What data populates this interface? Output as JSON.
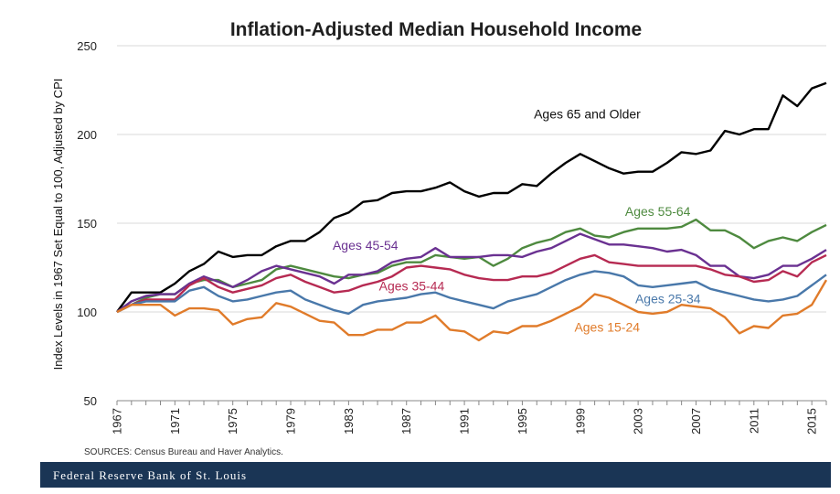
{
  "chart_data": {
    "type": "line",
    "title": "Inflation-Adjusted Median Household Income",
    "ylabel": "Index Levels in 1967 Set Equal to 100, Adjusted by CPI",
    "xlabel": "",
    "ylim": [
      50,
      250
    ],
    "yticks": [
      "250",
      "200",
      "150",
      "100",
      "50"
    ],
    "xlim": [
      1967,
      2016
    ],
    "xticks": [
      "1967",
      "1971",
      "1975",
      "1979",
      "1983",
      "1987",
      "1991",
      "1995",
      "1999",
      "2003",
      "2007",
      "2011",
      "2015"
    ],
    "grid": "horizontal",
    "x": [
      1967,
      1968,
      1969,
      1970,
      1971,
      1972,
      1973,
      1974,
      1975,
      1976,
      1977,
      1978,
      1979,
      1980,
      1981,
      1982,
      1983,
      1984,
      1985,
      1986,
      1987,
      1988,
      1989,
      1990,
      1991,
      1992,
      1993,
      1994,
      1995,
      1996,
      1997,
      1998,
      1999,
      2000,
      2001,
      2002,
      2003,
      2004,
      2005,
      2006,
      2007,
      2008,
      2009,
      2010,
      2011,
      2012,
      2013,
      2014,
      2015,
      2016
    ],
    "series": [
      {
        "name": "Ages 65 and Older",
        "color": "#000000",
        "values": [
          100,
          111,
          111,
          111,
          116,
          123,
          127,
          134,
          131,
          132,
          132,
          137,
          140,
          140,
          145,
          153,
          156,
          162,
          163,
          167,
          168,
          168,
          170,
          173,
          168,
          165,
          167,
          167,
          172,
          171,
          178,
          184,
          189,
          185,
          181,
          178,
          179,
          179,
          184,
          190,
          189,
          191,
          202,
          200,
          203,
          203,
          222,
          216,
          226,
          229
        ]
      },
      {
        "name": "Ages 55-64",
        "color": "#4e8a3f",
        "values": [
          100,
          104,
          108,
          110,
          110,
          116,
          118,
          118,
          114,
          116,
          118,
          124,
          126,
          124,
          122,
          120,
          119,
          121,
          122,
          126,
          128,
          128,
          132,
          131,
          130,
          131,
          126,
          130,
          136,
          139,
          141,
          145,
          147,
          143,
          142,
          145,
          147,
          147,
          147,
          148,
          152,
          146,
          146,
          142,
          136,
          140,
          142,
          140,
          145,
          149
        ]
      },
      {
        "name": "Ages 45-54",
        "color": "#6a3191",
        "values": [
          100,
          106,
          109,
          110,
          110,
          116,
          120,
          117,
          114,
          118,
          123,
          126,
          124,
          122,
          120,
          116,
          121,
          121,
          123,
          128,
          130,
          131,
          136,
          131,
          131,
          131,
          132,
          132,
          131,
          134,
          136,
          140,
          144,
          141,
          138,
          138,
          137,
          136,
          134,
          135,
          132,
          126,
          126,
          120,
          119,
          121,
          126,
          126,
          130,
          135
        ]
      },
      {
        "name": "Ages 35-44",
        "color": "#b62a52",
        "values": [
          100,
          104,
          107,
          107,
          107,
          115,
          119,
          114,
          111,
          113,
          115,
          119,
          121,
          117,
          114,
          111,
          112,
          115,
          117,
          120,
          125,
          126,
          125,
          124,
          121,
          119,
          118,
          118,
          120,
          120,
          122,
          126,
          130,
          132,
          128,
          127,
          126,
          126,
          126,
          126,
          126,
          124,
          121,
          120,
          117,
          118,
          123,
          120,
          128,
          132
        ]
      },
      {
        "name": "Ages 25-34",
        "color": "#4978aa",
        "values": [
          100,
          104,
          106,
          106,
          106,
          112,
          114,
          109,
          106,
          107,
          109,
          111,
          112,
          107,
          104,
          101,
          99,
          104,
          106,
          107,
          108,
          110,
          111,
          108,
          106,
          104,
          102,
          106,
          108,
          110,
          114,
          118,
          121,
          123,
          122,
          120,
          115,
          114,
          115,
          116,
          117,
          113,
          111,
          109,
          107,
          106,
          107,
          109,
          115,
          121
        ]
      },
      {
        "name": "Ages 15-24",
        "color": "#e07b2a",
        "values": [
          100,
          104,
          104,
          104,
          98,
          102,
          102,
          101,
          93,
          96,
          97,
          105,
          103,
          99,
          95,
          94,
          87,
          87,
          90,
          90,
          94,
          94,
          98,
          90,
          89,
          84,
          89,
          88,
          92,
          92,
          95,
          99,
          103,
          110,
          108,
          104,
          100,
          99,
          100,
          104,
          103,
          102,
          97,
          88,
          92,
          91,
          98,
          99,
          104,
          118
        ]
      }
    ]
  },
  "source_text": "SOURCES: Census Bureau and Haver Analytics.",
  "footer_text": "Federal Reserve Bank of St. Louis"
}
